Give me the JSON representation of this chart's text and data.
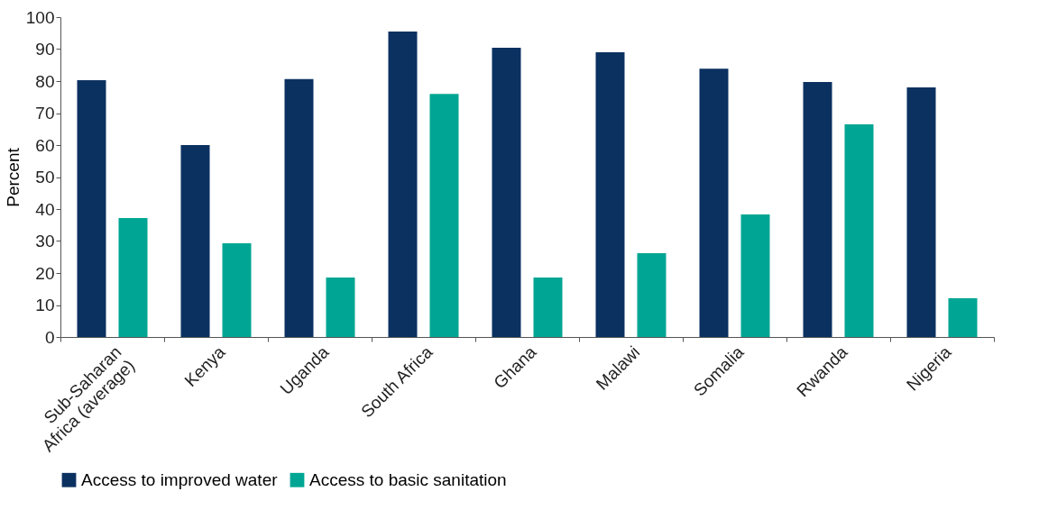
{
  "chart_data": {
    "type": "bar",
    "ylabel": "Percent",
    "categories": [
      "Sub-Saharan\nAfrica (average)",
      "Kenya",
      "Uganda",
      "South Africa",
      "Ghana",
      "Malawi",
      "Somalia",
      "Rwanda",
      "Nigeria"
    ],
    "series": [
      {
        "name": "Access to improved water",
        "color": "#0b3161",
        "values": [
          80.3,
          60,
          80.6,
          95.5,
          90.4,
          89,
          83.9,
          79.7,
          78
        ]
      },
      {
        "name": "Access to basic sanitation",
        "color": "#00a693",
        "values": [
          37.2,
          29.3,
          18.6,
          76,
          18.6,
          26.2,
          38.3,
          66.5,
          12.1
        ]
      }
    ],
    "ylim": [
      0,
      100
    ],
    "yticks": [
      0,
      10,
      20,
      30,
      40,
      50,
      60,
      70,
      80,
      90,
      100
    ],
    "grid": false,
    "legend": "bottom"
  }
}
